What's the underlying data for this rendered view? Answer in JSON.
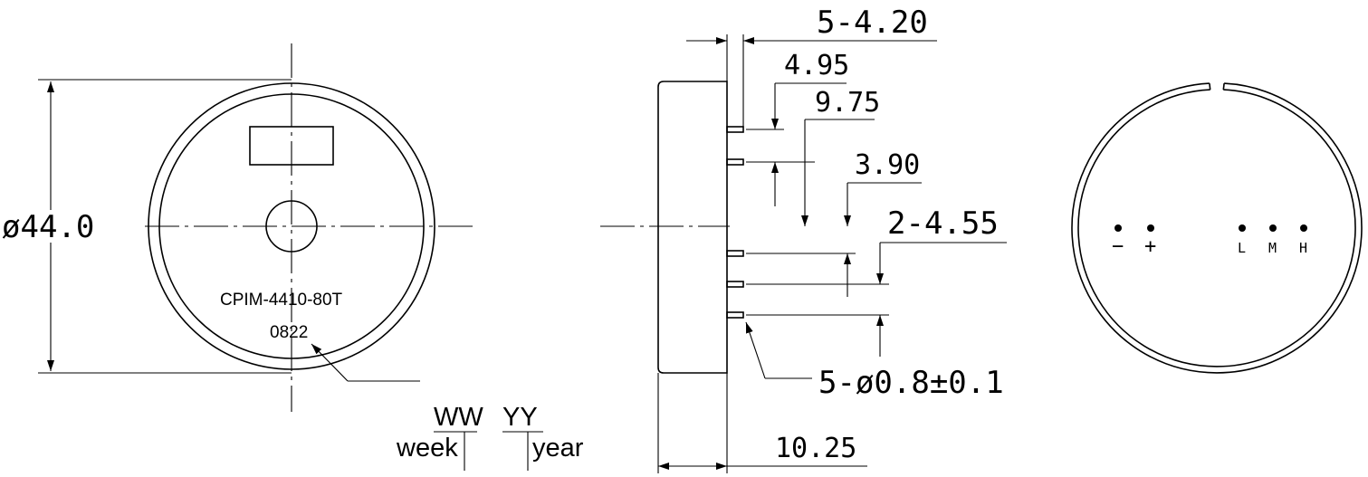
{
  "front_view": {
    "diameter_label": "ø44.0",
    "model_label": "CPIM-4410-80T",
    "date_code": "0822"
  },
  "date_legend": {
    "ww": "WW",
    "yy": "YY",
    "week": "week",
    "year": "year"
  },
  "side_view": {
    "pin_pitch_label": "5-4.20",
    "dim_a": "4.95",
    "dim_b": "9.75",
    "dim_c": "3.90",
    "dim_d": "2-4.55",
    "pin_dia_label": "5-ø0.8±0.1",
    "thickness_label": "10.25"
  },
  "back_view": {
    "terminals": [
      "−",
      "+",
      "L",
      "M",
      "H"
    ]
  }
}
